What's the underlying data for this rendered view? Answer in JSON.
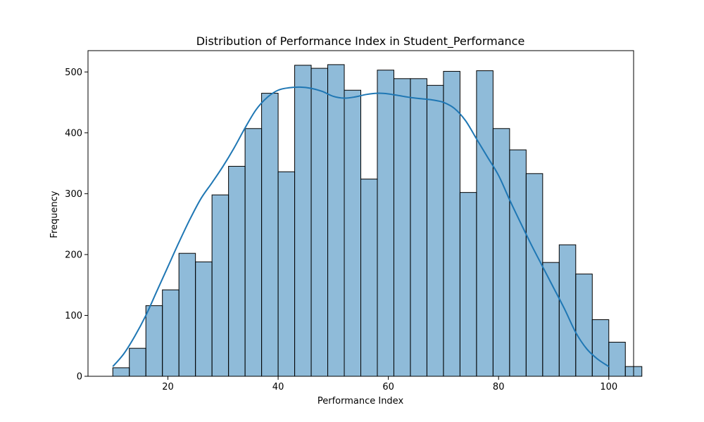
{
  "chart_data": {
    "type": "bar",
    "title": "Distribution of Performance Index in Student_Performance",
    "xlabel": "Performance Index",
    "ylabel": "Frequency",
    "xlim": [
      5.5,
      104.5
    ],
    "ylim": [
      0,
      535
    ],
    "xticks": [
      20,
      40,
      60,
      80,
      100
    ],
    "yticks": [
      0,
      100,
      200,
      300,
      400,
      500
    ],
    "grid": false,
    "bar_color": "#1f77b4",
    "bar_alpha": 0.5,
    "kde_color": "#1f77b4",
    "bins": {
      "start": 10,
      "width": 3,
      "counts": [
        14,
        46,
        116,
        142,
        202,
        188,
        298,
        345,
        407,
        465,
        336,
        511,
        506,
        512,
        470,
        324,
        503,
        489,
        489,
        478,
        501,
        302,
        502,
        407,
        372,
        333,
        187,
        216,
        168,
        93,
        56,
        16
      ]
    },
    "kde": {
      "x": [
        10,
        12,
        14,
        16,
        18,
        20,
        22,
        24,
        26,
        28,
        30,
        32,
        34,
        36,
        38,
        40,
        42,
        44,
        46,
        48,
        50,
        52,
        54,
        56,
        58,
        60,
        62,
        64,
        66,
        68,
        70,
        72,
        74,
        76,
        78,
        80,
        82,
        84,
        86,
        88,
        90,
        92,
        94,
        96,
        98,
        100
      ],
      "y": [
        16,
        37,
        66,
        100,
        140,
        180,
        220,
        258,
        292,
        318,
        345,
        375,
        408,
        438,
        458,
        470,
        474,
        475,
        473,
        468,
        460,
        457,
        459,
        463,
        465,
        464,
        461,
        458,
        456,
        454,
        450,
        440,
        420,
        390,
        360,
        330,
        290,
        252,
        215,
        180,
        145,
        110,
        72,
        45,
        28,
        16
      ]
    }
  }
}
